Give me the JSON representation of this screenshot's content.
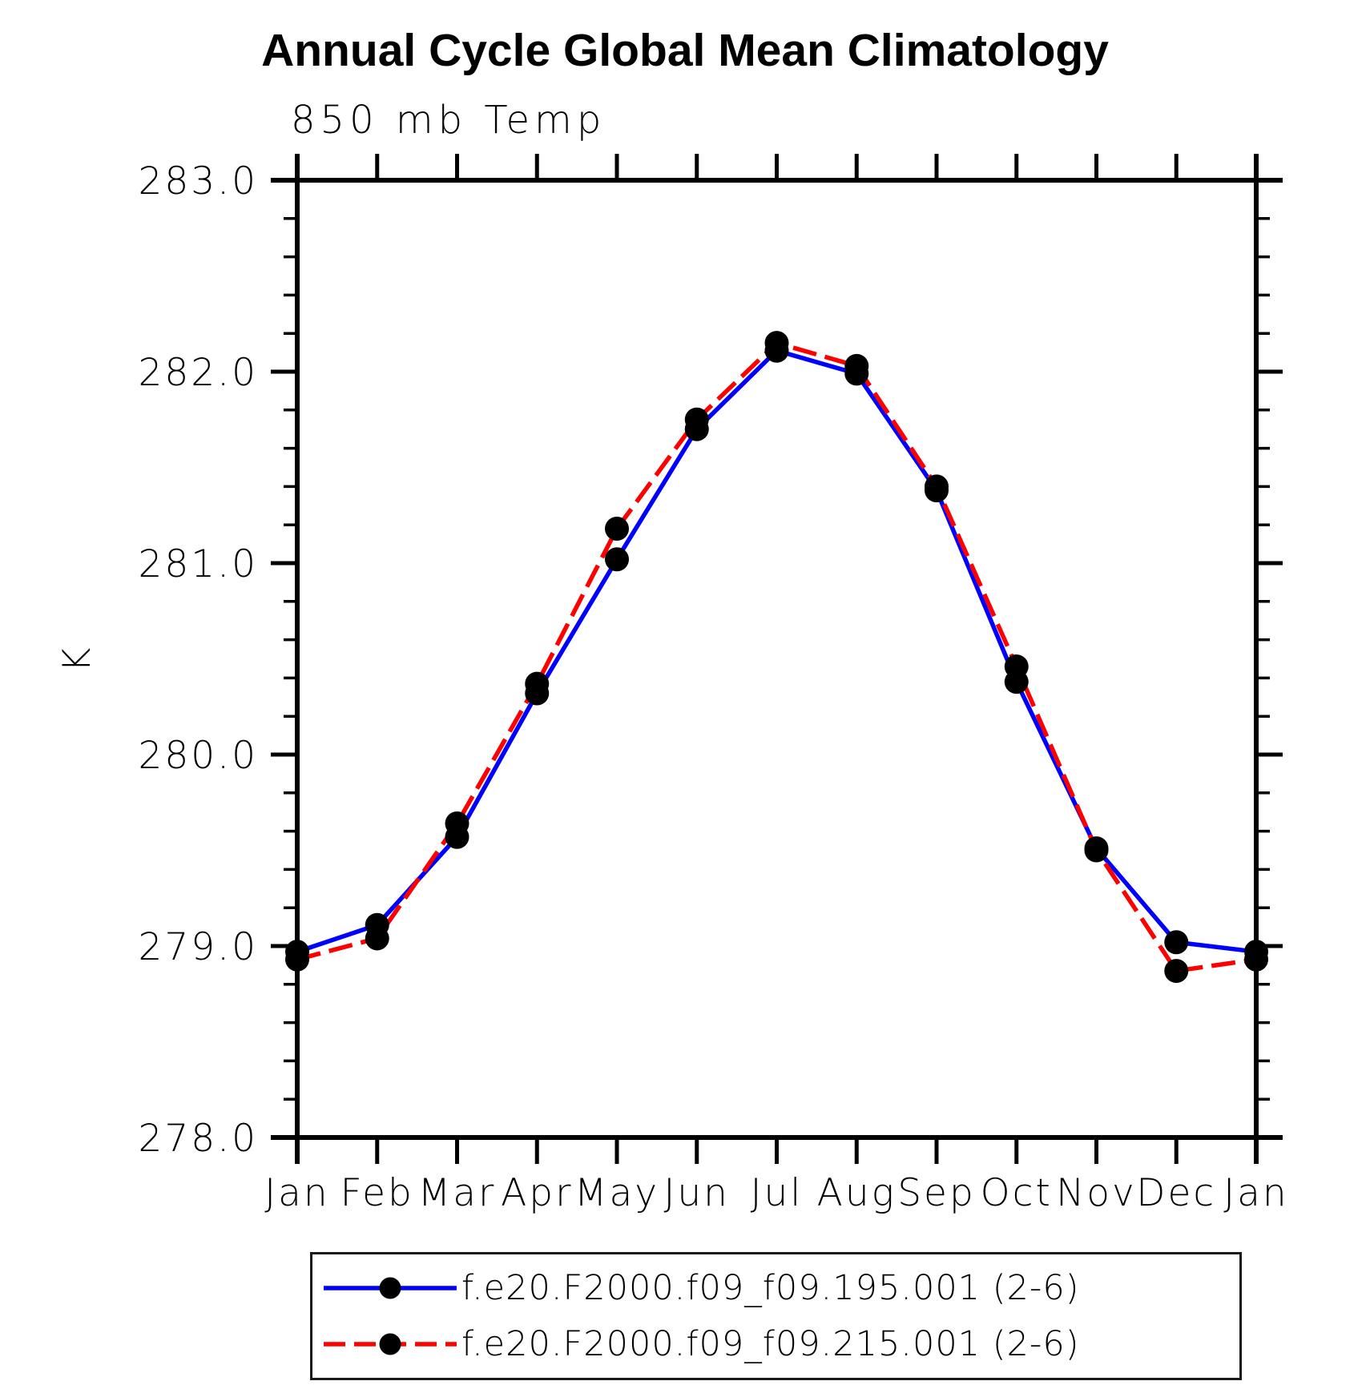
{
  "title": "Annual Cycle Global Mean Climatology",
  "chart_data": {
    "type": "line",
    "title": "Annual Cycle Global Mean Climatology",
    "subtitle": "850 mb Temp",
    "ylabel": "K",
    "xlabel": "",
    "ylim": [
      278.0,
      283.0
    ],
    "ytick_step": 1.0,
    "yminor_step": 0.2,
    "ytick_labels": [
      "278.0",
      "279.0",
      "280.0",
      "281.0",
      "282.0",
      "283.0"
    ],
    "categories": [
      "Jan",
      "Feb",
      "Mar",
      "Apr",
      "May",
      "Jun",
      "Jul",
      "Aug",
      "Sep",
      "Oct",
      "Nov",
      "Dec",
      "Jan"
    ],
    "grid": false,
    "legend_position": "bottom",
    "marker_color": "#000000",
    "axis_color": "#000000",
    "series": [
      {
        "name": "f.e20.F2000.f09_f09.195.001 (2-6)",
        "color": "#0000ff",
        "style": "solid",
        "marker": "black-dot",
        "values": [
          278.97,
          279.11,
          279.57,
          280.32,
          281.02,
          281.7,
          282.11,
          281.99,
          281.38,
          280.38,
          279.51,
          279.02,
          278.97
        ]
      },
      {
        "name": "f.e20.F2000.f09_f09.215.001 (2-6)",
        "color": "#ff0000",
        "style": "dashed",
        "marker": "black-dot",
        "values": [
          278.93,
          279.04,
          279.64,
          280.37,
          281.18,
          281.75,
          282.15,
          282.03,
          281.4,
          280.46,
          279.5,
          278.87,
          278.93
        ]
      }
    ]
  }
}
